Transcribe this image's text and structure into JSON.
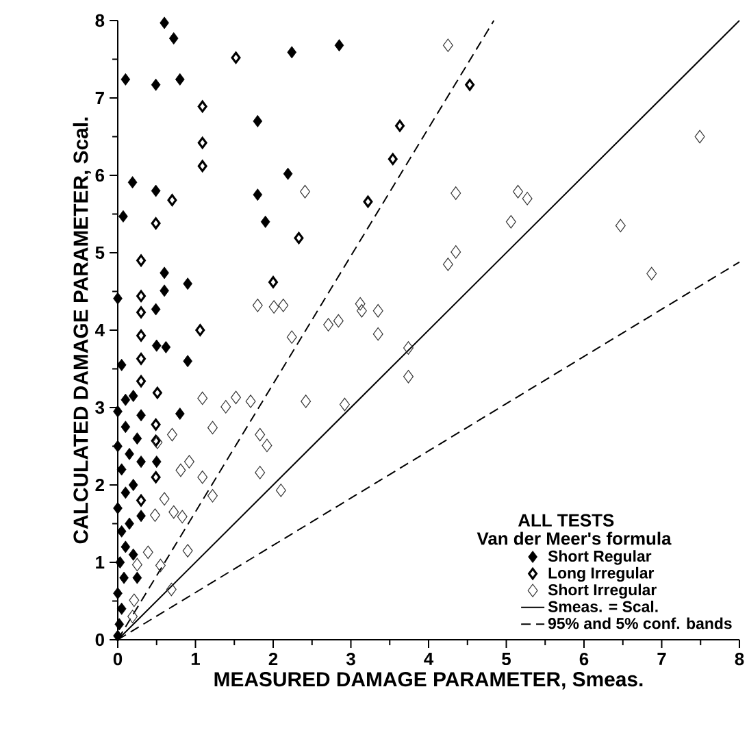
{
  "chart_data": {
    "type": "scatter",
    "xlabel": "MEASURED DAMAGE PARAMETER, Smeas.",
    "ylabel": "CALCULATED DAMAGE PARAMETER, Scal.",
    "legend_title": "ALL TESTS",
    "annotations": [
      "Van der Meer's formula"
    ],
    "xlim": [
      0,
      8
    ],
    "ylim": [
      0,
      8
    ],
    "xticks": [
      0,
      1,
      2,
      3,
      4,
      5,
      6,
      7,
      8
    ],
    "yticks": [
      0,
      1,
      2,
      3,
      4,
      5,
      6,
      7,
      8
    ],
    "grid": false,
    "legend": "bottom right",
    "marker": "diamond",
    "series": [
      {
        "name": "Short Regular",
        "color": "#000000",
        "x": [
          0.6,
          0.72,
          0.1,
          0.49,
          0.8,
          2.24,
          2.85,
          1.8,
          2.19,
          0.19,
          0.49,
          1.8,
          1.9,
          0.07,
          0.6,
          0.6,
          0.9,
          0,
          0.49,
          0.5,
          0.62,
          0.9,
          0.05,
          0.8,
          0.1,
          0.3,
          0,
          0.5,
          0,
          0.02,
          0.05,
          0,
          0.08,
          0.03,
          0.1,
          0.05,
          0.15,
          0,
          0.1,
          0.2,
          0.05,
          0.15,
          0,
          0.25,
          0.1,
          0.3,
          0.2,
          0.25,
          0.3,
          0.2
        ],
        "values": [
          7.97,
          7.77,
          7.24,
          7.17,
          7.24,
          7.59,
          7.68,
          6.7,
          6.02,
          5.91,
          5.8,
          5.75,
          5.4,
          5.47,
          4.74,
          4.51,
          4.6,
          4.41,
          4.27,
          3.8,
          3.78,
          3.6,
          3.55,
          2.92,
          3.1,
          2.9,
          2.95,
          2.3,
          0.05,
          0.2,
          0.4,
          0.6,
          0.8,
          1.0,
          1.2,
          1.4,
          1.5,
          1.7,
          1.9,
          2.0,
          2.2,
          2.4,
          2.5,
          2.6,
          2.75,
          2.3,
          1.1,
          0.8,
          1.6,
          3.15
        ]
      },
      {
        "name": "Long Irregular",
        "color": "#000000",
        "x": [
          1.52,
          1.09,
          1.09,
          1.09,
          0.7,
          0.49,
          0.3,
          0.3,
          0.3,
          2.0,
          4.53,
          3.63,
          3.54,
          3.22,
          2.33,
          1.06,
          0.3,
          0.3,
          0.3,
          0.51,
          0.49,
          0.49,
          0.49,
          0.3
        ],
        "values": [
          7.52,
          6.89,
          6.42,
          6.12,
          5.68,
          5.38,
          4.9,
          4.44,
          4.23,
          4.62,
          7.17,
          6.64,
          6.21,
          5.66,
          5.19,
          4.0,
          3.93,
          3.63,
          3.34,
          3.19,
          2.78,
          2.57,
          2.1,
          1.8
        ]
      },
      {
        "name": "Short Irregular",
        "color": "#333333",
        "x": [
          4.25,
          4.35,
          5.15,
          5.27,
          5.06,
          4.35,
          4.25,
          2.41,
          2.13,
          2.01,
          1.8,
          3.12,
          3.14,
          3.35,
          3.35,
          2.84,
          2.71,
          2.24,
          3.74,
          3.74,
          2.42,
          2.92,
          7.49,
          6.47,
          6.87,
          1.09,
          1.39,
          1.52,
          1.71,
          1.22,
          1.83,
          1.92,
          0.92,
          0.81,
          1.09,
          1.83,
          1.22,
          2.1,
          0.6,
          0.72,
          0.83,
          0.48,
          0.9,
          0.69,
          0.55,
          0.39,
          0.25,
          0.21,
          0.19,
          0.7,
          0.51
        ],
        "values": [
          7.68,
          5.77,
          5.79,
          5.7,
          5.4,
          5.01,
          4.85,
          5.79,
          4.32,
          4.3,
          4.32,
          4.34,
          4.25,
          4.25,
          3.95,
          4.12,
          4.07,
          3.91,
          3.77,
          3.4,
          3.08,
          3.04,
          6.5,
          5.35,
          4.73,
          3.12,
          3.01,
          3.13,
          3.08,
          2.74,
          2.65,
          2.51,
          2.3,
          2.19,
          2.1,
          2.16,
          1.86,
          1.93,
          1.82,
          1.65,
          1.59,
          1.61,
          1.15,
          0.65,
          0.96,
          1.13,
          0.97,
          0.51,
          0.3,
          2.65,
          2.55
        ]
      },
      {
        "name": "Smeas. = Scal.",
        "type": "line",
        "marker": "none",
        "line_style": "solid",
        "color": "#000000",
        "x": [
          0,
          8
        ],
        "values": [
          0,
          8
        ]
      },
      {
        "name": "95% and 5% conf. bands",
        "type": "line",
        "marker": "none",
        "line_style": "dashed",
        "color": "#000000",
        "x": [
          0,
          4.84,
          null,
          0,
          8
        ],
        "values": [
          0,
          8,
          null,
          0,
          4.88
        ]
      }
    ]
  }
}
